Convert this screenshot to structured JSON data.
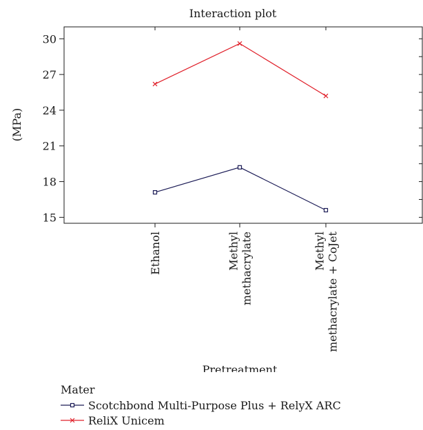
{
  "chart_data": {
    "type": "line",
    "title": "Interaction plot",
    "xlabel": "Pretreatment",
    "ylabel": "(MPa)",
    "categories": [
      [
        "Ethanol"
      ],
      [
        "Methyl",
        "methacrylate"
      ],
      [
        "Methyl",
        "methacrylate + CoJet"
      ]
    ],
    "ylim": [
      14.5,
      31
    ],
    "yticks": [
      15,
      18,
      21,
      24,
      27,
      30
    ],
    "legend_title": "Mater",
    "legend_position": "bottom-left",
    "grid": false,
    "series": [
      {
        "name": "Scotchbond Multi-Purpose Plus + RelyX ARC",
        "values": [
          17.1,
          19.2,
          15.6
        ],
        "color": "#1a1a55",
        "marker": "square"
      },
      {
        "name": "ReliX Unicem",
        "values": [
          26.2,
          29.6,
          25.2
        ],
        "color": "#e0202a",
        "marker": "x"
      }
    ]
  }
}
